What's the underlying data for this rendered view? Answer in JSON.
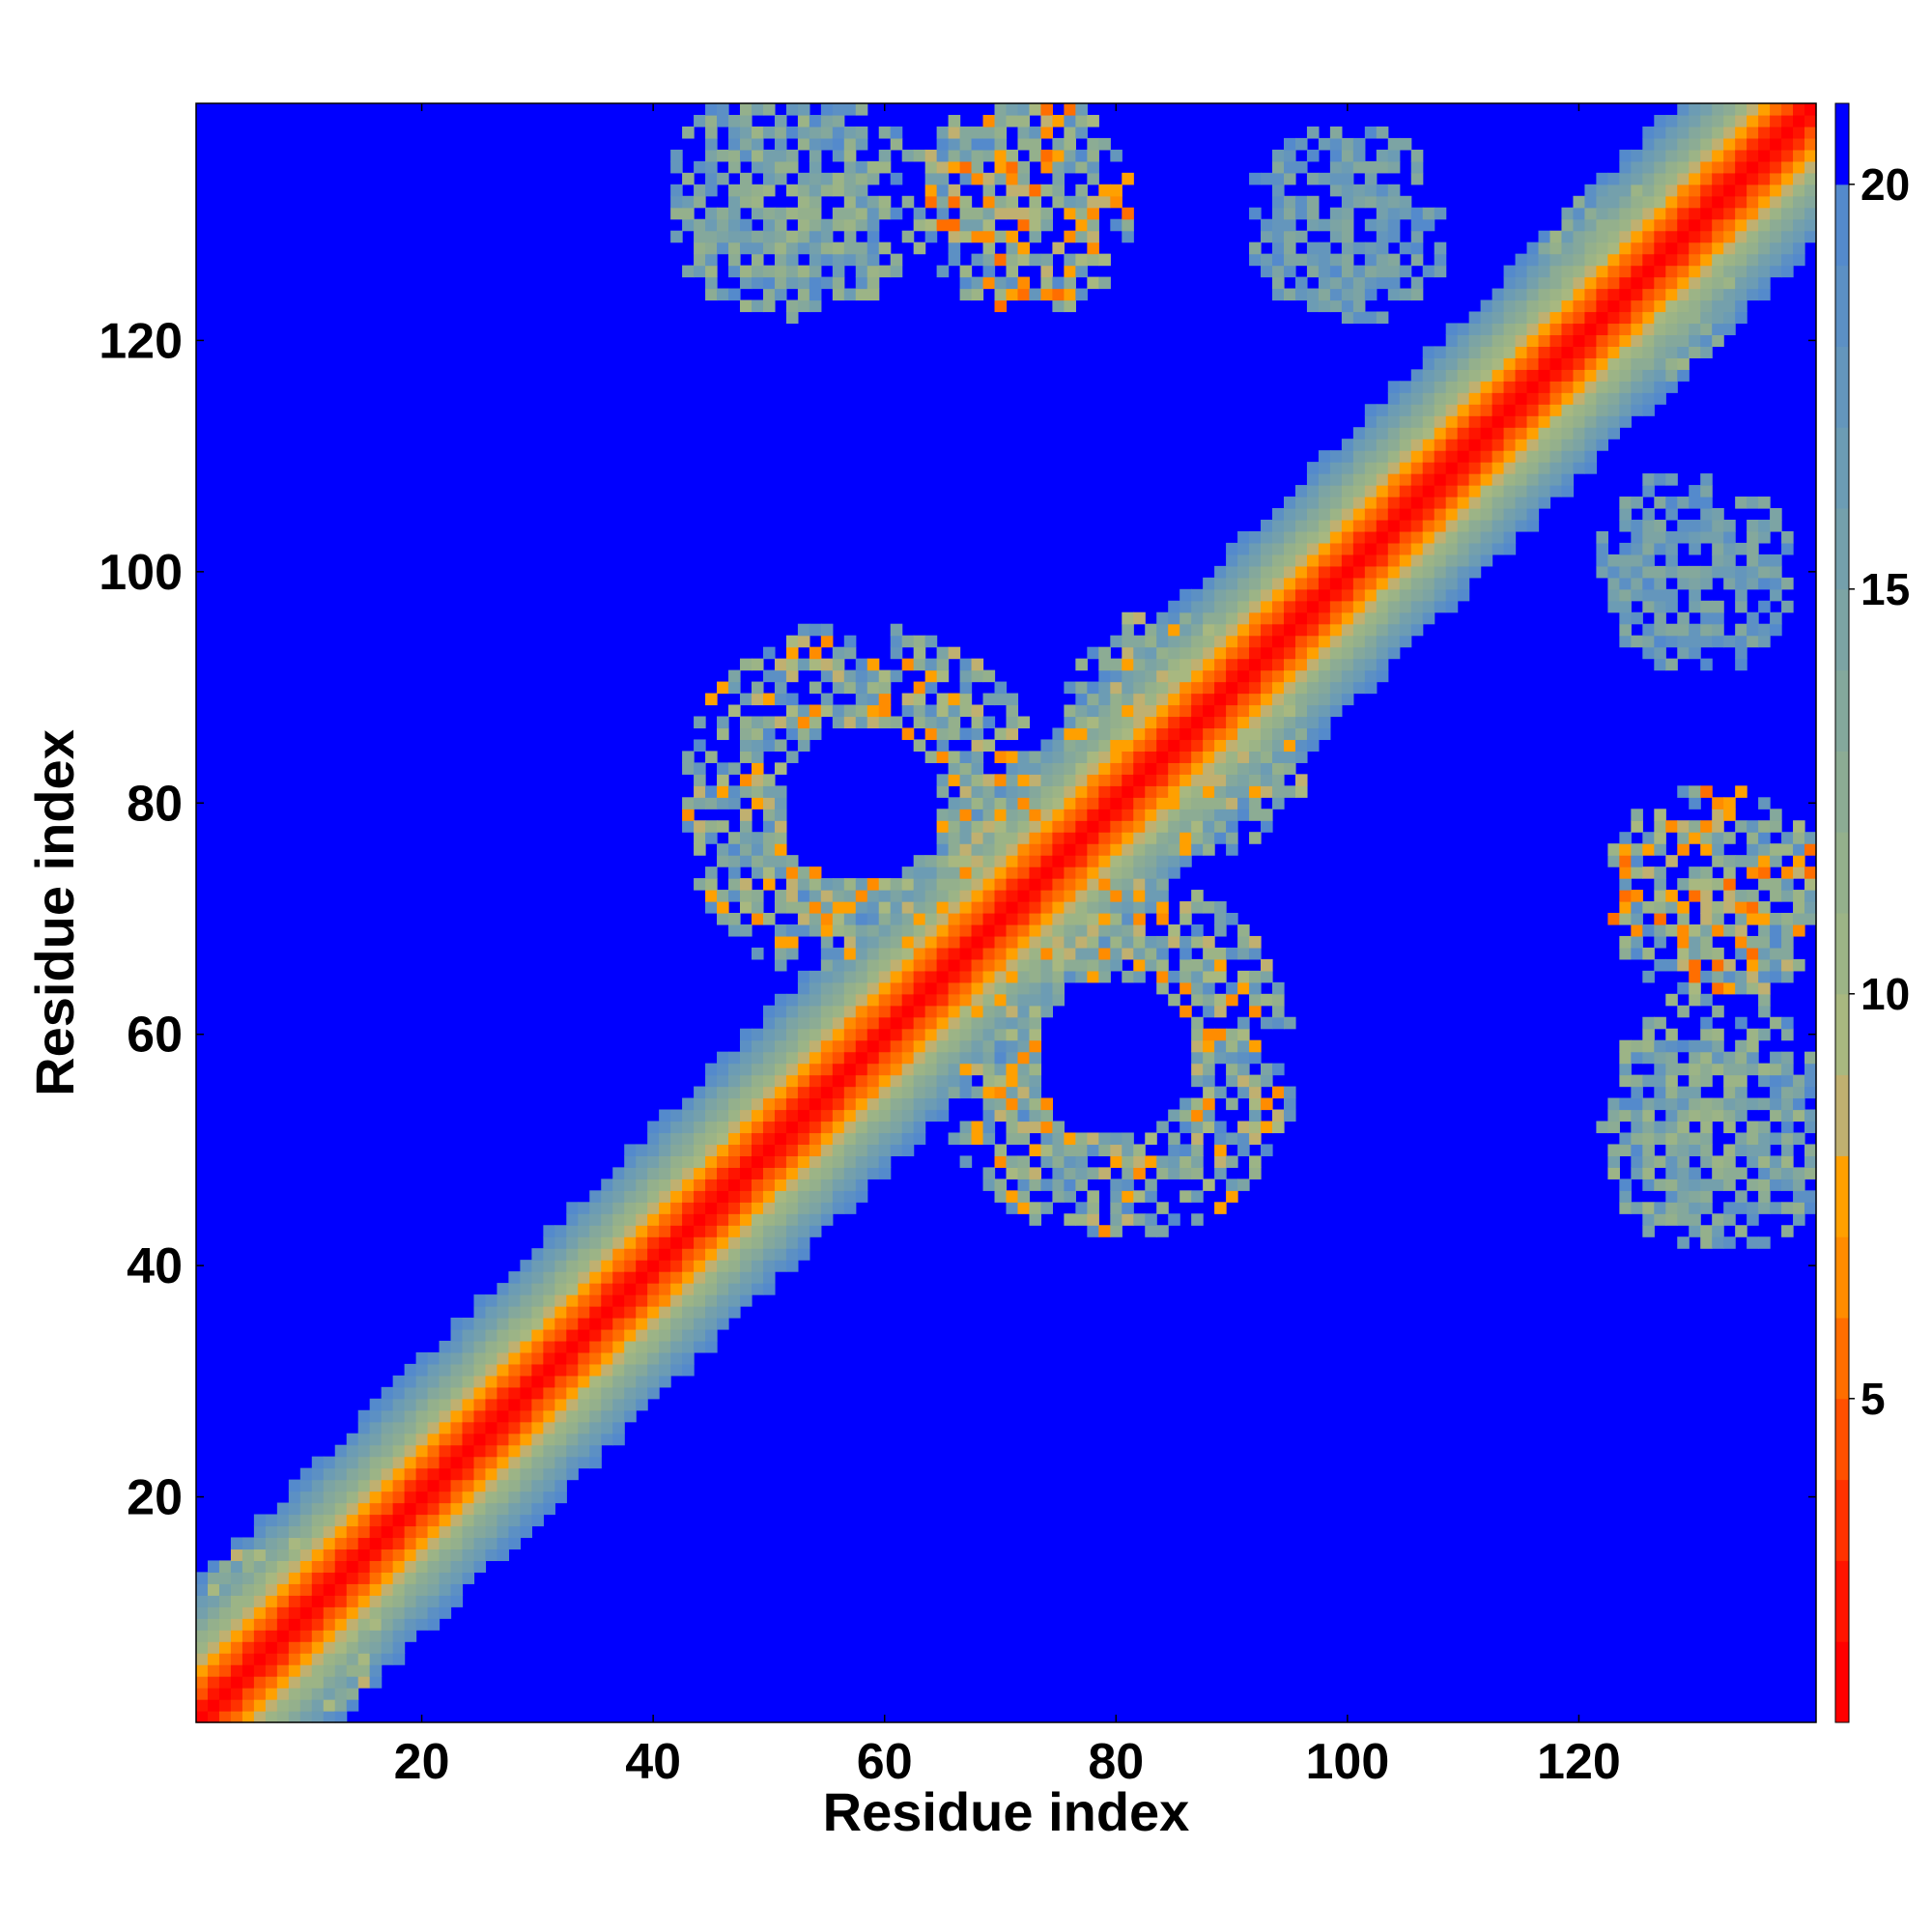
{
  "chart_data": {
    "type": "heatmap",
    "title": "",
    "xlabel": "Residue index",
    "ylabel": "Residue index",
    "n_residues": 140,
    "xlim": [
      1,
      140
    ],
    "ylim": [
      1,
      140
    ],
    "x_ticks": [
      20,
      40,
      60,
      80,
      100,
      120
    ],
    "y_ticks": [
      20,
      40,
      60,
      80,
      100,
      120
    ],
    "colorbar": {
      "range": [
        1,
        21
      ],
      "ticks": [
        5,
        10,
        15,
        20
      ],
      "levels": [
        {
          "max": 2,
          "color": "#ff0000"
        },
        {
          "max": 3,
          "color": "#ff1400"
        },
        {
          "max": 4,
          "color": "#ff3200"
        },
        {
          "max": 5,
          "color": "#ff5000"
        },
        {
          "max": 6,
          "color": "#ff6e00"
        },
        {
          "max": 7,
          "color": "#ff8c00"
        },
        {
          "max": 8,
          "color": "#ffa000"
        },
        {
          "max": 9,
          "color": "#c0b070"
        },
        {
          "max": 10,
          "color": "#a8b880"
        },
        {
          "max": 11,
          "color": "#9cb486"
        },
        {
          "max": 12,
          "color": "#94b08c"
        },
        {
          "max": 13,
          "color": "#8cac94"
        },
        {
          "max": 14,
          "color": "#84a89c"
        },
        {
          "max": 15,
          "color": "#7ca4a4"
        },
        {
          "max": 16,
          "color": "#74a0ac"
        },
        {
          "max": 17,
          "color": "#6c9cb4"
        },
        {
          "max": 18,
          "color": "#6496bc"
        },
        {
          "max": 19,
          "color": "#5c90c4"
        },
        {
          "max": 20,
          "color": "#548acc"
        },
        {
          "max": 21,
          "color": "#0000ff"
        }
      ]
    },
    "cutoff": 20,
    "background_color": "#0000ff",
    "contact_regions": [
      {
        "center_x": 58,
        "center_y": 80,
        "radius": 16,
        "inner_radius": 7,
        "min_distance": 6
      },
      {
        "center_x": 95,
        "center_y": 57,
        "radius": 17,
        "inner_radius": 7,
        "min_distance": 6
      },
      {
        "center_x": 72,
        "center_y": 132,
        "radius": 10,
        "inner_radius": 0,
        "min_distance": 5
      },
      {
        "center_x": 52,
        "center_y": 132,
        "radius": 11,
        "inner_radius": 0,
        "min_distance": 10
      },
      {
        "center_x": 100,
        "center_y": 130,
        "radius": 9,
        "inner_radius": 0,
        "min_distance": 13
      },
      {
        "center_x": 132,
        "center_y": 70,
        "radius": 9,
        "inner_radius": 0,
        "min_distance": 6
      },
      {
        "center_x": 133,
        "center_y": 100,
        "radius": 7,
        "inner_radius": 0,
        "min_distance": 13
      },
      {
        "center_x": 133,
        "center_y": 48,
        "radius": 10,
        "inner_radius": 0,
        "min_distance": 12
      },
      {
        "center_x": 85,
        "center_y": 87,
        "radius": 10,
        "inner_radius": 0,
        "min_distance": 7
      },
      {
        "center_x": 125,
        "center_y": 125,
        "radius": 9,
        "inner_radius": 0,
        "min_distance": 9
      },
      {
        "center_x": 8,
        "center_y": 10,
        "radius": 7,
        "inner_radius": 0,
        "min_distance": 8
      },
      {
        "center_x": 120,
        "center_y": 72,
        "radius": 4,
        "inner_radius": 0,
        "min_distance": 14
      }
    ]
  }
}
